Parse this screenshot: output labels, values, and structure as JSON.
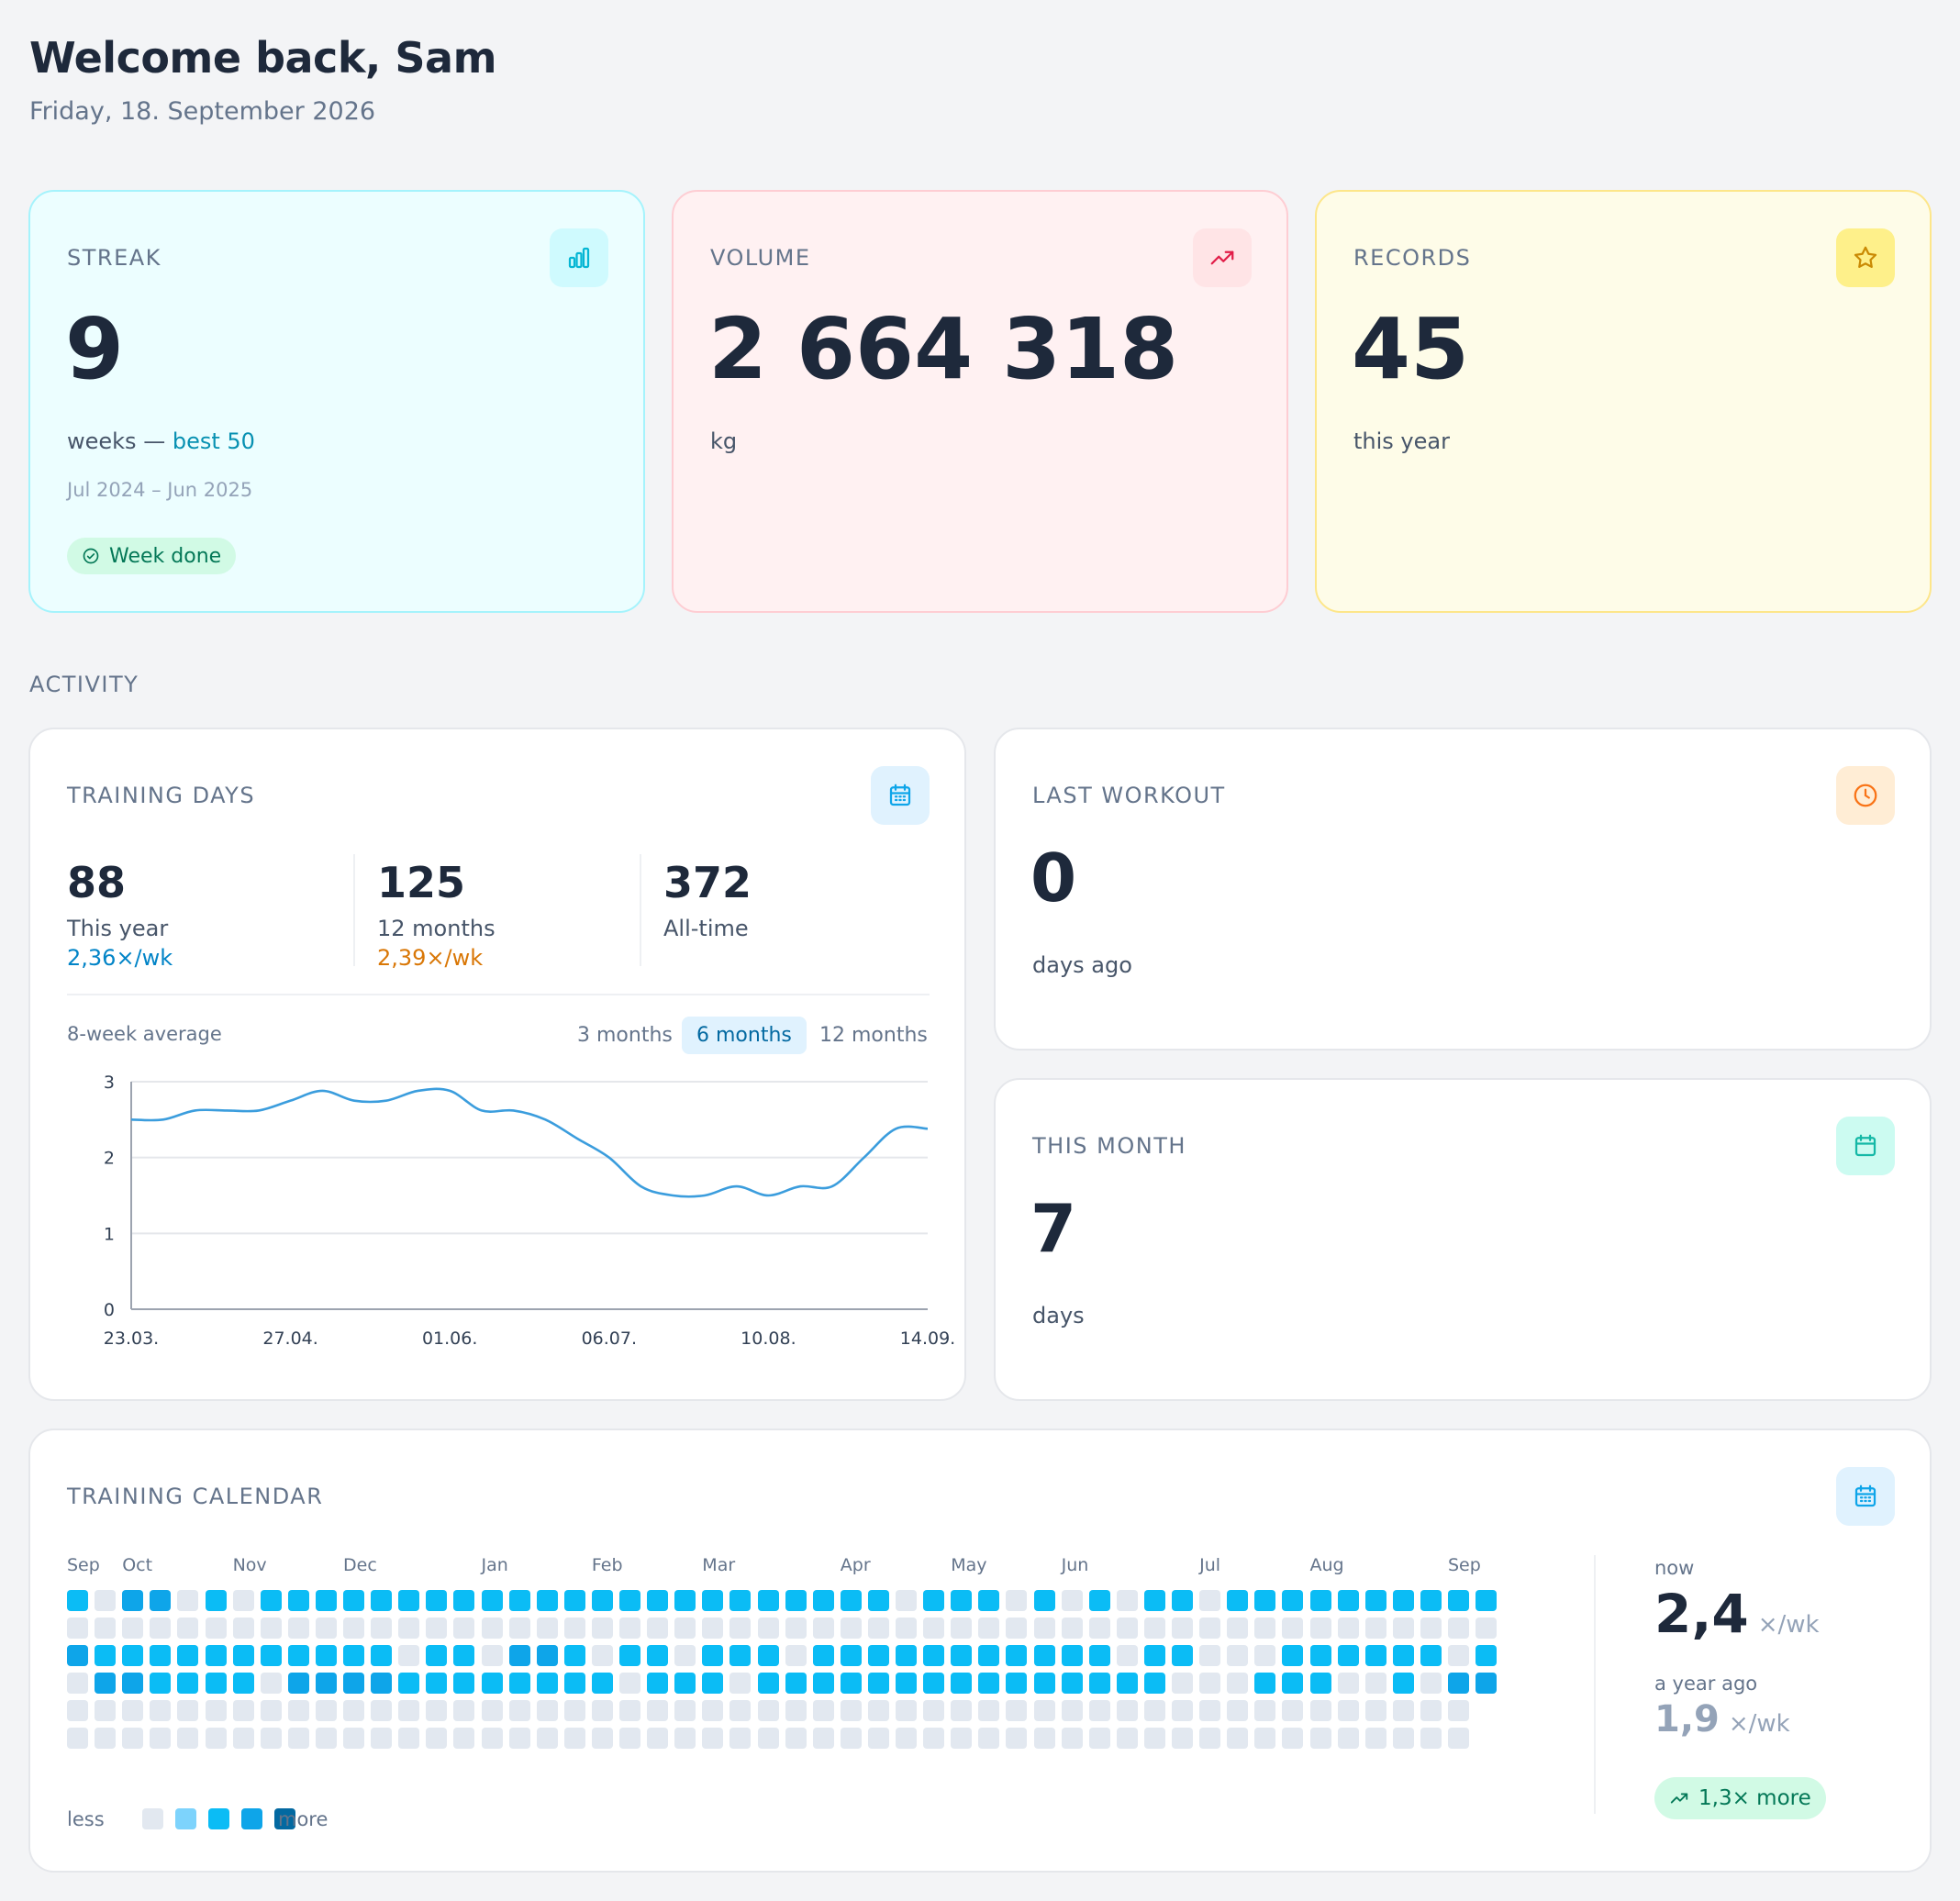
{
  "header": {
    "greeting": "Welcome back, Sam",
    "date": "Friday, 18. September 2026"
  },
  "streak": {
    "label": "STREAK",
    "value": "9",
    "unit": "weeks — ",
    "best": "best 50",
    "range": "Jul 2024 – Jun 2025",
    "badge": "Week done",
    "icon": "bar-chart-icon",
    "color": "#06b6d4"
  },
  "volume": {
    "label": "VOLUME",
    "value": "2 664 318",
    "unit": "kg",
    "icon": "trend-up-icon",
    "color": "#e11d48"
  },
  "records": {
    "label": "RECORDS",
    "value": "45",
    "unit": "this year",
    "icon": "star-icon",
    "color": "#eab308"
  },
  "activity": {
    "section_title": "ACTIVITY"
  },
  "training_days": {
    "label": "TRAINING DAYS",
    "stats": [
      {
        "value": "88",
        "label": "This year",
        "rate": "2,36×/wk",
        "rate_color": "#0284c7"
      },
      {
        "value": "125",
        "label": "12 months",
        "rate": "2,39×/wk",
        "rate_color": "#d97706"
      },
      {
        "value": "372",
        "label": "All-time",
        "rate": "",
        "rate_color": "#475569"
      }
    ],
    "chart_caption": "8-week average",
    "ranges": [
      "3 months",
      "6 months",
      "12 months"
    ],
    "active_range": "6 months"
  },
  "chart_data": {
    "type": "line",
    "title": "",
    "xlabel": "",
    "ylabel": "",
    "x_ticks": [
      "23.03.",
      "27.04.",
      "01.06.",
      "06.07.",
      "10.08.",
      "14.09."
    ],
    "y_ticks": [
      "0",
      "1",
      "2",
      "3"
    ],
    "ylim": [
      0,
      3
    ],
    "grid": true,
    "series": [
      {
        "color": "#3b9ddd",
        "x": [
          "23.03.",
          "30.03.",
          "06.04.",
          "13.04.",
          "20.04.",
          "27.04.",
          "04.05.",
          "11.05.",
          "18.05.",
          "25.05.",
          "01.06.",
          "08.06.",
          "15.06.",
          "22.06.",
          "29.06.",
          "06.07.",
          "13.07.",
          "20.07.",
          "27.07.",
          "03.08.",
          "10.08.",
          "17.08.",
          "24.08.",
          "31.08.",
          "07.09.",
          "14.09."
        ],
        "values": [
          2.5,
          2.5,
          2.62,
          2.62,
          2.62,
          2.75,
          2.88,
          2.75,
          2.75,
          2.88,
          2.88,
          2.62,
          2.62,
          2.5,
          2.25,
          2.0,
          1.62,
          1.5,
          1.5,
          1.62,
          1.5,
          1.62,
          1.62,
          2.0,
          2.38,
          2.38
        ]
      }
    ]
  },
  "last_workout": {
    "label": "LAST WORKOUT",
    "value": "0",
    "unit": "days ago",
    "icon": "clock-icon",
    "color": "#f97316"
  },
  "this_month": {
    "label": "THIS MONTH",
    "value": "7",
    "unit": "days",
    "icon": "calendar-icon",
    "color": "#14b8a6"
  },
  "calendar": {
    "label": "TRAINING CALENDAR",
    "months": [
      {
        "name": "Sep",
        "col": 0
      },
      {
        "name": "Oct",
        "col": 2
      },
      {
        "name": "Nov",
        "col": 6
      },
      {
        "name": "Dec",
        "col": 10
      },
      {
        "name": "Jan",
        "col": 15
      },
      {
        "name": "Feb",
        "col": 19
      },
      {
        "name": "Mar",
        "col": 23
      },
      {
        "name": "Apr",
        "col": 28
      },
      {
        "name": "May",
        "col": 32
      },
      {
        "name": "Jun",
        "col": 36
      },
      {
        "name": "Jul",
        "col": 41
      },
      {
        "name": "Aug",
        "col": 45
      },
      {
        "name": "Sep",
        "col": 50
      }
    ],
    "rows": [
      "2033020222222222222222222222220222020202202222222222",
      "0000000000000000000000000000000000000000000000000000",
      "3222222222220220332022022202222222222202200022222202",
      "0332222033332222222202220222222222222222000222002033",
      "000000000000000000000000000000000000000000000000000",
      "000000000000000000000000000000000000000000000000000"
    ],
    "legend_less": "less",
    "legend_more": "more",
    "legend_levels": [
      0,
      1,
      2,
      3,
      4
    ],
    "now_label": "now",
    "now_value": "2,4",
    "now_unit": "×/wk",
    "ago_label": "a year ago",
    "ago_value": "1,9",
    "ago_unit": "×/wk",
    "badge": "1,3× more"
  }
}
